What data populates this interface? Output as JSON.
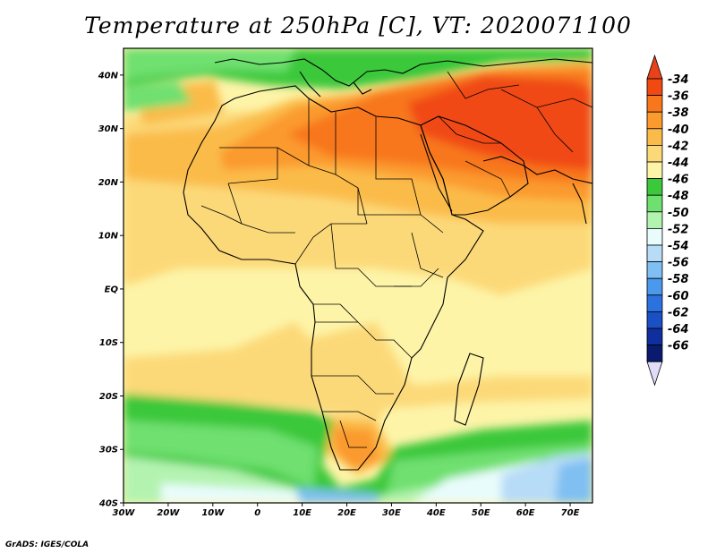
{
  "title": "Temperature at 250hPa [C], VT: 2020071100",
  "credit": "GrADS: IGES/COLA",
  "map": {
    "lon_range": [
      -30,
      75
    ],
    "lat_range": [
      -40,
      45
    ],
    "lon_ticks": [
      {
        "value": -30,
        "label": "30W"
      },
      {
        "value": -20,
        "label": "20W"
      },
      {
        "value": -10,
        "label": "10W"
      },
      {
        "value": 0,
        "label": "0"
      },
      {
        "value": 10,
        "label": "10E"
      },
      {
        "value": 20,
        "label": "20E"
      },
      {
        "value": 30,
        "label": "30E"
      },
      {
        "value": 40,
        "label": "40E"
      },
      {
        "value": 50,
        "label": "50E"
      },
      {
        "value": 60,
        "label": "60E"
      },
      {
        "value": 70,
        "label": "70E"
      }
    ],
    "lat_ticks": [
      {
        "value": 40,
        "label": "40N"
      },
      {
        "value": 30,
        "label": "30N"
      },
      {
        "value": 20,
        "label": "20N"
      },
      {
        "value": 10,
        "label": "10N"
      },
      {
        "value": 0,
        "label": "EQ"
      },
      {
        "value": -10,
        "label": "10S"
      },
      {
        "value": -20,
        "label": "20S"
      },
      {
        "value": -30,
        "label": "30S"
      },
      {
        "value": -40,
        "label": "40S"
      }
    ]
  },
  "colorbar": {
    "levels": [
      {
        "label": "-34",
        "color": "#f04a12"
      },
      {
        "label": "-36",
        "color": "#f8771c"
      },
      {
        "label": "-38",
        "color": "#fb9a2d"
      },
      {
        "label": "-40",
        "color": "#fbbb48"
      },
      {
        "label": "-42",
        "color": "#fcd978"
      },
      {
        "label": "-44",
        "color": "#fdf4a8"
      },
      {
        "label": "-46",
        "color": "#3bc83b"
      },
      {
        "label": "-48",
        "color": "#6fe06f"
      },
      {
        "label": "-50",
        "color": "#b3f3b0"
      },
      {
        "label": "-52",
        "color": "#e9fcfc"
      },
      {
        "label": "-54",
        "color": "#b7dcf7"
      },
      {
        "label": "-56",
        "color": "#7fbff2"
      },
      {
        "label": "-58",
        "color": "#4b99ec"
      },
      {
        "label": "-60",
        "color": "#2b72de"
      },
      {
        "label": "-62",
        "color": "#1a50c4"
      },
      {
        "label": "-64",
        "color": "#0f2f9e"
      },
      {
        "label": "-66",
        "color": "#0a1a6e"
      }
    ],
    "top_arrow_color": "#e8421a",
    "bottom_arrow_color": "#e2dcf8"
  }
}
